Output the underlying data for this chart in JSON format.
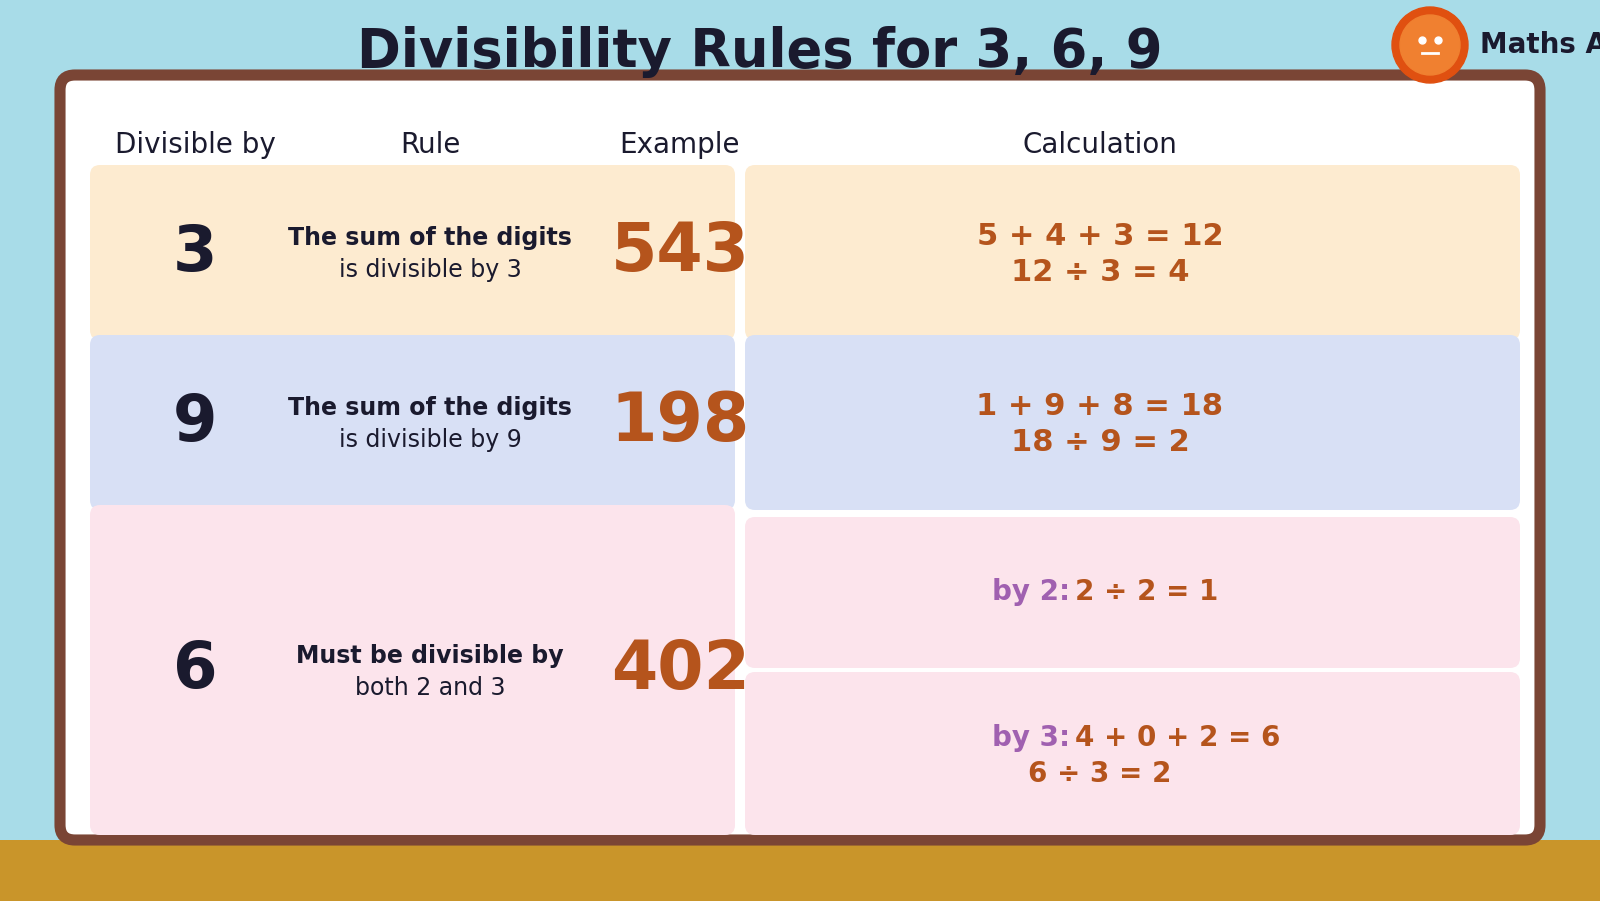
{
  "title": "Divisibility Rules for 3, 6, 9",
  "title_fontsize": 38,
  "title_color": "#1a1a2e",
  "bg_color": "#a8dce8",
  "panel_bg": "#ffffff",
  "panel_border": "#7a4535",
  "floor_color": "#c9952a",
  "header_labels": [
    "Divisible by",
    "Rule",
    "Example",
    "Calculation"
  ],
  "header_fontsize": 20,
  "rows": [
    {
      "number": "3",
      "row_bg": "#fdebd0",
      "rule_line1": "The sum of the digits",
      "rule_line2": "is divisible by 3",
      "example": "543",
      "calc_line1": "5 + 4 + 3 = 12",
      "calc_line2": "12 ÷ 3 = 4",
      "example_color": "#b5541c",
      "calc_color": "#b5541c",
      "split_calc": false
    },
    {
      "number": "9",
      "row_bg": "#d8e0f5",
      "rule_line1": "The sum of the digits",
      "rule_line2": "is divisible by 9",
      "example": "198",
      "calc_line1": "1 + 9 + 8 = 18",
      "calc_line2": "18 ÷ 9 = 2",
      "example_color": "#b5541c",
      "calc_color": "#b5541c",
      "split_calc": false
    },
    {
      "number": "6",
      "row_bg": "#fce4ec",
      "rule_line1": "Must be divisible by",
      "rule_line2": "both 2 and 3",
      "example": "402",
      "calc_box1_label": "by 2:",
      "calc_box1_text": "2 ÷ 2 = 1",
      "calc_box2_label": "by 3:",
      "calc_box2_line1": "4 + 0 + 2 = 6",
      "calc_box2_line2": "6 ÷ 3 = 2",
      "example_color": "#b5541c",
      "calc_color": "#b5541c",
      "calc_label_color": "#a060b0",
      "split_calc": true
    }
  ],
  "number_color": "#1a1a2e",
  "rule_bold_color": "#1a1a2e",
  "rule_normal_color": "#1a1a2e",
  "header_color": "#1a1a2e",
  "branding_text": "Maths Angel",
  "branding_color": "#1a1a2e"
}
